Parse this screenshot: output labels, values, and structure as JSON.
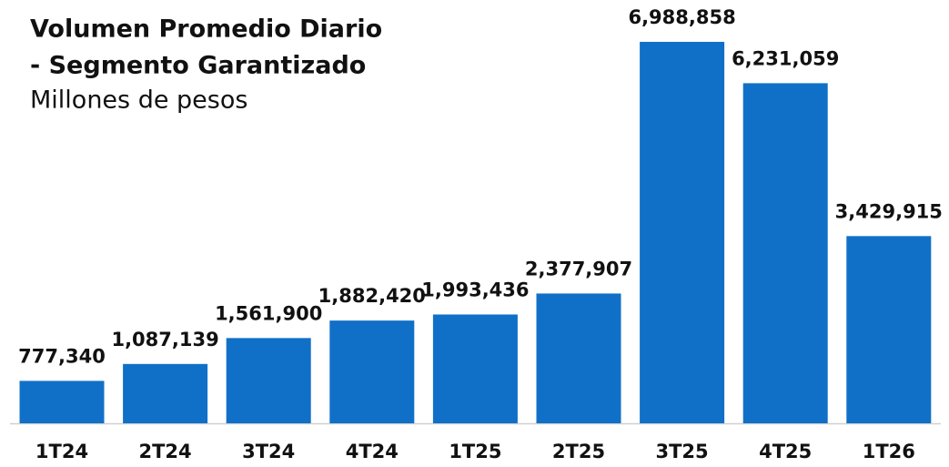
{
  "chart_data": {
    "type": "bar",
    "title": [
      "Volumen Promedio Diario",
      "- Segmento Garantizado"
    ],
    "subtitle": "Millones de pesos",
    "categories": [
      "1T24",
      "2T24",
      "3T24",
      "4T24",
      "1T25",
      "2T25",
      "3T25",
      "4T25",
      "1T26"
    ],
    "values": [
      777340,
      1087139,
      1561900,
      1882420,
      1993436,
      2377907,
      6988858,
      6231059,
      3429915
    ],
    "value_labels": [
      "777,340",
      "1,087,139",
      "1,561,900",
      "1,882,420",
      "1,993,436",
      "2,377,907",
      "6,988,858",
      "6,231,059",
      "3,429,915"
    ],
    "color": "#1070c8",
    "ylim": [
      0,
      7000000
    ]
  }
}
